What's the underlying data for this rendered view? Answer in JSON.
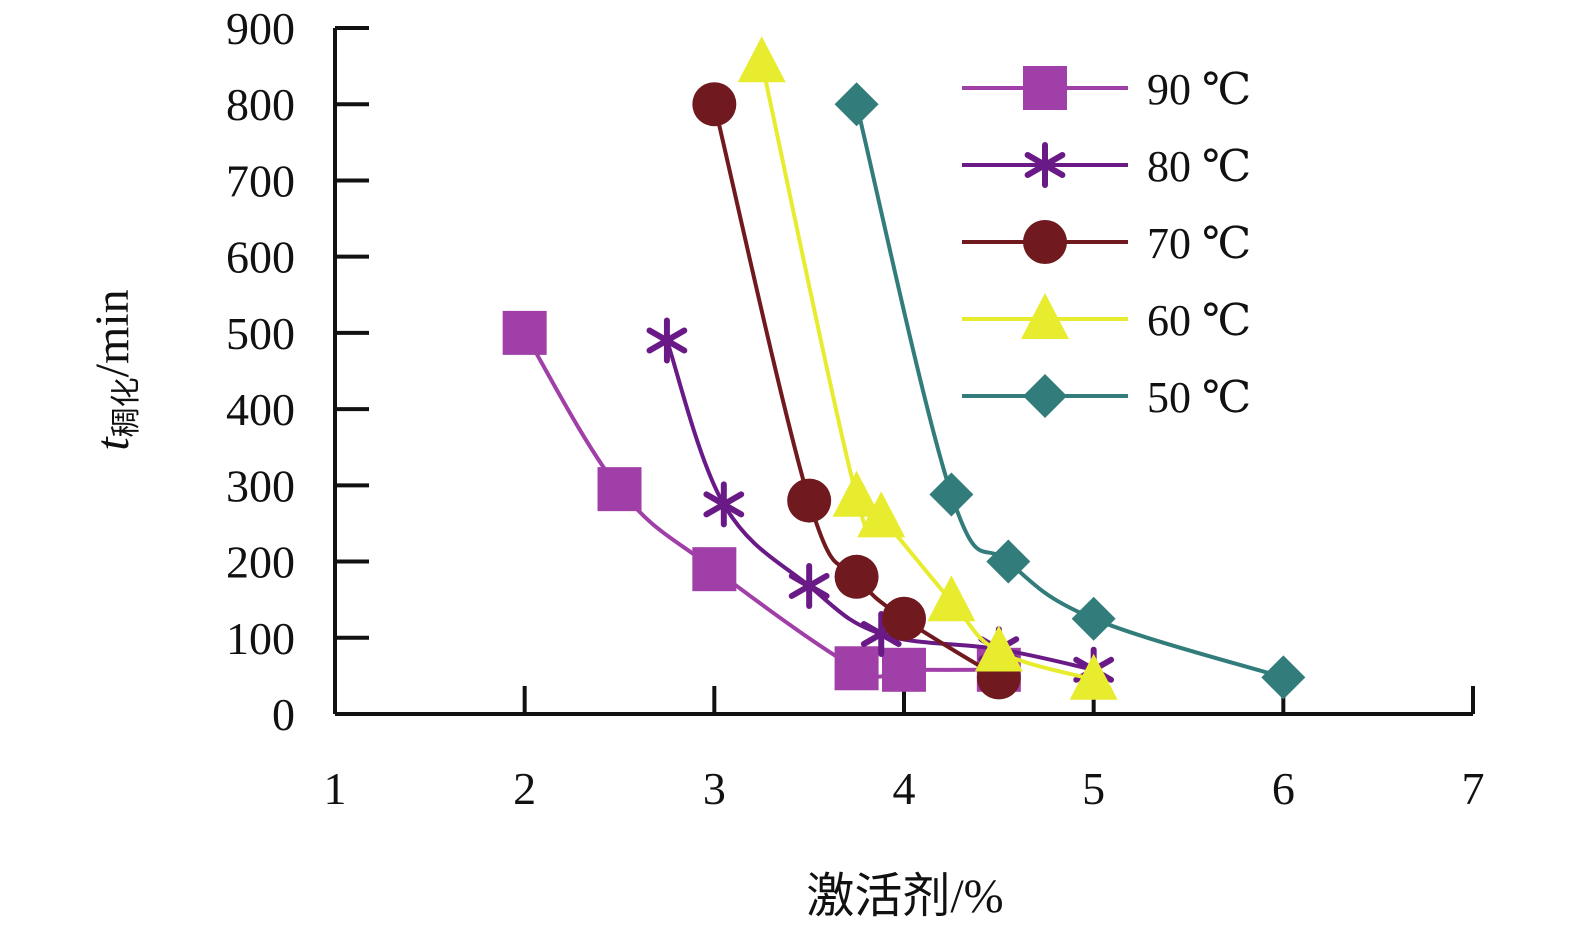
{
  "chart_data": {
    "type": "line",
    "title": "",
    "xlabel": "激活剂/%",
    "ylabel": {
      "main": "t",
      "subscript": "稠化",
      "unit": "/min"
    },
    "xlim": [
      1,
      7
    ],
    "ylim": [
      0,
      900
    ],
    "xticks": [
      1,
      2,
      3,
      4,
      5,
      6,
      7
    ],
    "yticks": [
      0,
      100,
      200,
      300,
      400,
      500,
      600,
      700,
      800,
      900
    ],
    "grid": false,
    "legend_position": "top-right",
    "series": [
      {
        "name": "90 ℃",
        "color": "#a03fa8",
        "marker": "square",
        "x": [
          2,
          2.5,
          3,
          3.75,
          4,
          4.5
        ],
        "y": [
          500,
          295,
          190,
          60,
          58,
          58
        ]
      },
      {
        "name": "80 ℃",
        "color": "#6a1a86",
        "marker": "asterisk",
        "x": [
          2.75,
          3.05,
          3.5,
          3.88,
          4.5,
          5
        ],
        "y": [
          490,
          275,
          168,
          105,
          85,
          58
        ]
      },
      {
        "name": "70 ℃",
        "color": "#701a1f",
        "marker": "circle",
        "x": [
          3,
          3.5,
          3.75,
          4,
          4.5
        ],
        "y": [
          800,
          280,
          180,
          125,
          48
        ]
      },
      {
        "name": "60 ℃",
        "color": "#e8ec2e",
        "marker": "triangle",
        "x": [
          3.25,
          3.75,
          3.88,
          4.25,
          4.5,
          5
        ],
        "y": [
          855,
          285,
          258,
          148,
          82,
          45
        ]
      },
      {
        "name": "50 ℃",
        "color": "#327d7b",
        "marker": "diamond",
        "x": [
          3.75,
          4.25,
          4.55,
          5,
          6
        ],
        "y": [
          800,
          288,
          200,
          125,
          48
        ]
      }
    ]
  }
}
